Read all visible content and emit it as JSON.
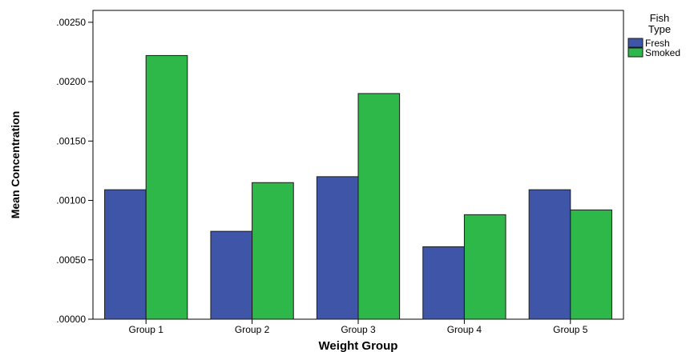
{
  "chart_data": {
    "type": "bar",
    "title": "",
    "xlabel": "Weight Group",
    "ylabel": "Mean Concentration",
    "categories": [
      "Group 1",
      "Group 2",
      "Group 3",
      "Group 4",
      "Group 5"
    ],
    "series": [
      {
        "name": "Fresh",
        "color": "#3f55a8",
        "values": [
          0.00109,
          0.00074,
          0.0012,
          0.00061,
          0.00109
        ]
      },
      {
        "name": "Smoked",
        "color": "#2fb84a",
        "values": [
          0.00222,
          0.00115,
          0.0019,
          0.00088,
          0.00092
        ]
      }
    ],
    "ylim": [
      0,
      0.0026
    ],
    "yticks": [
      ".00000",
      ".00050",
      ".00100",
      ".00150",
      ".00200",
      ".00250"
    ],
    "ytick_values": [
      0,
      0.0005,
      0.001,
      0.0015,
      0.002,
      0.0025
    ],
    "grid": false,
    "legend": {
      "title_line1": "Fish",
      "title_line2": "Type",
      "placement": "right"
    }
  }
}
